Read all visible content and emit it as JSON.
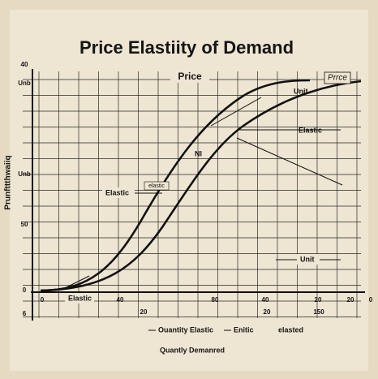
{
  "title": "Price Elastiity of Demand",
  "annotations": {
    "price_top": "Price",
    "price_corner": "Prrce",
    "unit_top": "Unit",
    "elastic_right": "Elastic",
    "nl": "Nl",
    "elastic_small": "elastic",
    "elastic_left": "Elastic",
    "unit_bottom": "Unit",
    "elastic_bottom": "Elastic"
  },
  "y_axis": {
    "title": "Prunfttthwaiiq",
    "ticks": [
      "40",
      "Unb",
      "Unb",
      "50",
      "0",
      "6"
    ]
  },
  "x_axis": {
    "ticks_row1": [
      "0",
      "40",
      "80",
      "40",
      "20",
      "20",
      "0"
    ],
    "ticks_row2": [
      "20",
      "20",
      "150"
    ],
    "title": "Quantly Demanred"
  },
  "legend": [
    "Ouantity Elastic",
    "Enitic",
    "elasted"
  ]
}
